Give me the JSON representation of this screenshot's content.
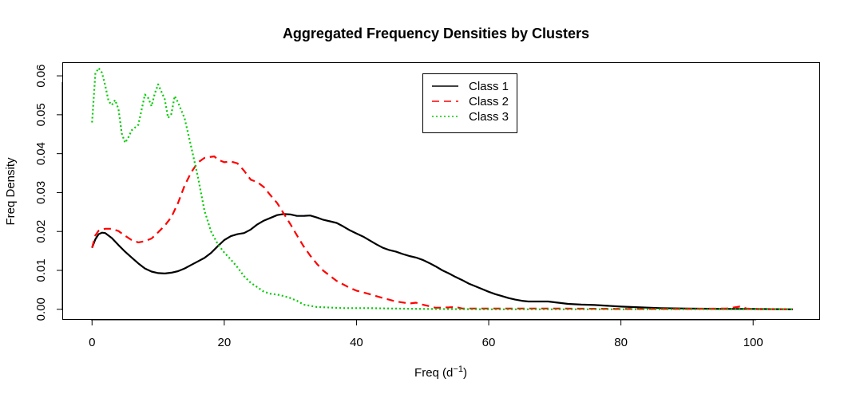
{
  "chart_data": {
    "type": "line",
    "title": "Aggregated Frequency Densities by Clusters",
    "xlabel_main": "Freq (d",
    "xlabel_sup": "−1",
    "xlabel_tail": ")",
    "ylabel": "Freq Density",
    "xlim": [
      -4.5,
      110
    ],
    "ylim": [
      -0.0025,
      0.0635
    ],
    "x_ticks": [
      0,
      20,
      40,
      60,
      80,
      100
    ],
    "x_tick_labels": [
      "0",
      "20",
      "40",
      "60",
      "80",
      "100"
    ],
    "y_ticks": [
      0.0,
      0.01,
      0.02,
      0.03,
      0.04,
      0.05,
      0.06
    ],
    "y_tick_labels": [
      "0.00",
      "0.01",
      "0.02",
      "0.03",
      "0.04",
      "0.05",
      "0.06"
    ],
    "legend_position": "top-center",
    "series": [
      {
        "name": "Class 1",
        "color": "#000000",
        "dash": "solid",
        "points": [
          [
            0,
            0.0158
          ],
          [
            0.5,
            0.018
          ],
          [
            1,
            0.0193
          ],
          [
            1.5,
            0.0197
          ],
          [
            2,
            0.0196
          ],
          [
            3,
            0.0183
          ],
          [
            4,
            0.0165
          ],
          [
            5,
            0.0148
          ],
          [
            6,
            0.0133
          ],
          [
            7,
            0.0118
          ],
          [
            8,
            0.0105
          ],
          [
            9,
            0.0097
          ],
          [
            10,
            0.0093
          ],
          [
            11,
            0.0092
          ],
          [
            12,
            0.0094
          ],
          [
            13,
            0.0098
          ],
          [
            14,
            0.0105
          ],
          [
            15,
            0.0114
          ],
          [
            16,
            0.0123
          ],
          [
            17,
            0.0132
          ],
          [
            18,
            0.0145
          ],
          [
            19,
            0.0162
          ],
          [
            20,
            0.0178
          ],
          [
            21,
            0.0188
          ],
          [
            22,
            0.0193
          ],
          [
            23,
            0.0196
          ],
          [
            24,
            0.0205
          ],
          [
            25,
            0.0218
          ],
          [
            26,
            0.0228
          ],
          [
            27,
            0.0235
          ],
          [
            28,
            0.0242
          ],
          [
            29,
            0.0245
          ],
          [
            30,
            0.0244
          ],
          [
            31,
            0.024
          ],
          [
            32,
            0.024
          ],
          [
            33,
            0.0241
          ],
          [
            34,
            0.0236
          ],
          [
            35,
            0.023
          ],
          [
            36,
            0.0226
          ],
          [
            37,
            0.0222
          ],
          [
            38,
            0.0213
          ],
          [
            39,
            0.0203
          ],
          [
            40,
            0.0195
          ],
          [
            41,
            0.0187
          ],
          [
            42,
            0.0177
          ],
          [
            43,
            0.0167
          ],
          [
            44,
            0.0158
          ],
          [
            45,
            0.0152
          ],
          [
            46,
            0.0148
          ],
          [
            47,
            0.0142
          ],
          [
            48,
            0.0137
          ],
          [
            49,
            0.0133
          ],
          [
            50,
            0.0127
          ],
          [
            51,
            0.0119
          ],
          [
            52,
            0.011
          ],
          [
            53,
            0.01
          ],
          [
            54,
            0.0092
          ],
          [
            55,
            0.0083
          ],
          [
            56,
            0.0075
          ],
          [
            57,
            0.0066
          ],
          [
            58,
            0.0059
          ],
          [
            59,
            0.0052
          ],
          [
            60,
            0.0045
          ],
          [
            61,
            0.0039
          ],
          [
            62,
            0.0034
          ],
          [
            63,
            0.0029
          ],
          [
            64,
            0.0025
          ],
          [
            65,
            0.0022
          ],
          [
            66,
            0.002
          ],
          [
            67,
            0.002
          ],
          [
            68,
            0.002
          ],
          [
            69,
            0.002
          ],
          [
            70,
            0.0018
          ],
          [
            71,
            0.0016
          ],
          [
            72,
            0.0014
          ],
          [
            74,
            0.0012
          ],
          [
            76,
            0.0011
          ],
          [
            78,
            0.0009
          ],
          [
            80,
            0.0007
          ],
          [
            83,
            0.0005
          ],
          [
            86,
            0.0003
          ],
          [
            90,
            0.0002
          ],
          [
            95,
            0.0001
          ],
          [
            100,
            0.0001
          ],
          [
            106,
            0.0
          ]
        ]
      },
      {
        "name": "Class 2",
        "color": "#ff0000",
        "dash": "dashed",
        "points": [
          [
            0,
            0.0158
          ],
          [
            0.5,
            0.019
          ],
          [
            1,
            0.0202
          ],
          [
            2,
            0.0207
          ],
          [
            3,
            0.0207
          ],
          [
            4,
            0.0201
          ],
          [
            5,
            0.0189
          ],
          [
            6,
            0.0178
          ],
          [
            7,
            0.0172
          ],
          [
            8,
            0.0175
          ],
          [
            9,
            0.0182
          ],
          [
            10,
            0.0198
          ],
          [
            11,
            0.0215
          ],
          [
            12,
            0.0237
          ],
          [
            13,
            0.0273
          ],
          [
            14,
            0.0318
          ],
          [
            15,
            0.0352
          ],
          [
            16,
            0.0377
          ],
          [
            17,
            0.0389
          ],
          [
            18,
            0.0392
          ],
          [
            18.5,
            0.0393
          ],
          [
            19,
            0.0385
          ],
          [
            20,
            0.0378
          ],
          [
            21,
            0.038
          ],
          [
            22,
            0.0375
          ],
          [
            23,
            0.0356
          ],
          [
            24,
            0.0333
          ],
          [
            25,
            0.0327
          ],
          [
            26,
            0.0314
          ],
          [
            27,
            0.0293
          ],
          [
            28,
            0.0273
          ],
          [
            29,
            0.0246
          ],
          [
            30,
            0.0219
          ],
          [
            31,
            0.019
          ],
          [
            32,
            0.0162
          ],
          [
            33,
            0.0138
          ],
          [
            34,
            0.0117
          ],
          [
            35,
            0.0099
          ],
          [
            36,
            0.0086
          ],
          [
            37,
            0.0073
          ],
          [
            38,
            0.0064
          ],
          [
            39,
            0.0055
          ],
          [
            40,
            0.0048
          ],
          [
            42,
            0.0039
          ],
          [
            44,
            0.0029
          ],
          [
            46,
            0.002
          ],
          [
            48,
            0.0015
          ],
          [
            49,
            0.0017
          ],
          [
            50,
            0.0012
          ],
          [
            52,
            0.0004
          ],
          [
            54,
            0.0005
          ],
          [
            55,
            0.0006
          ],
          [
            56,
            0.0002
          ],
          [
            60,
            0.0002
          ],
          [
            65,
            0.0002
          ],
          [
            70,
            0.0002
          ],
          [
            80,
            0.0001
          ],
          [
            90,
            0.0001
          ],
          [
            96,
            0.0002
          ],
          [
            98,
            0.0007
          ],
          [
            99,
            0.0002
          ],
          [
            101,
            0.0
          ],
          [
            106,
            0.0
          ]
        ]
      },
      {
        "name": "Class 3",
        "color": "#00cc00",
        "dash": "dotted",
        "points": [
          [
            0,
            0.048
          ],
          [
            0.5,
            0.0605
          ],
          [
            1,
            0.062
          ],
          [
            1.5,
            0.0608
          ],
          [
            2,
            0.0575
          ],
          [
            2.5,
            0.0535
          ],
          [
            3,
            0.0525
          ],
          [
            3.5,
            0.0538
          ],
          [
            4,
            0.0514
          ],
          [
            4.5,
            0.0452
          ],
          [
            5,
            0.0428
          ],
          [
            5.5,
            0.0442
          ],
          [
            6,
            0.046
          ],
          [
            7,
            0.0474
          ],
          [
            8,
            0.0552
          ],
          [
            8.5,
            0.0543
          ],
          [
            9,
            0.0522
          ],
          [
            9.5,
            0.0555
          ],
          [
            10,
            0.0578
          ],
          [
            11,
            0.054
          ],
          [
            11.5,
            0.0492
          ],
          [
            12,
            0.0502
          ],
          [
            12.5,
            0.0548
          ],
          [
            13,
            0.0532
          ],
          [
            14,
            0.0491
          ],
          [
            15,
            0.0418
          ],
          [
            16,
            0.0342
          ],
          [
            17,
            0.0254
          ],
          [
            18,
            0.02
          ],
          [
            19,
            0.0168
          ],
          [
            20,
            0.0146
          ],
          [
            21,
            0.0128
          ],
          [
            22,
            0.0108
          ],
          [
            23,
            0.0085
          ],
          [
            24,
            0.0068
          ],
          [
            25,
            0.0057
          ],
          [
            26,
            0.0045
          ],
          [
            27,
            0.004
          ],
          [
            28,
            0.0038
          ],
          [
            29,
            0.0034
          ],
          [
            30,
            0.0029
          ],
          [
            31,
            0.0022
          ],
          [
            32,
            0.0012
          ],
          [
            34,
            0.0006
          ],
          [
            38,
            0.0003
          ],
          [
            42,
            0.0003
          ],
          [
            45,
            0.0002
          ],
          [
            50,
            0.0001
          ],
          [
            60,
            0.0
          ],
          [
            80,
            0.0
          ],
          [
            106,
            0.0
          ]
        ]
      }
    ]
  }
}
